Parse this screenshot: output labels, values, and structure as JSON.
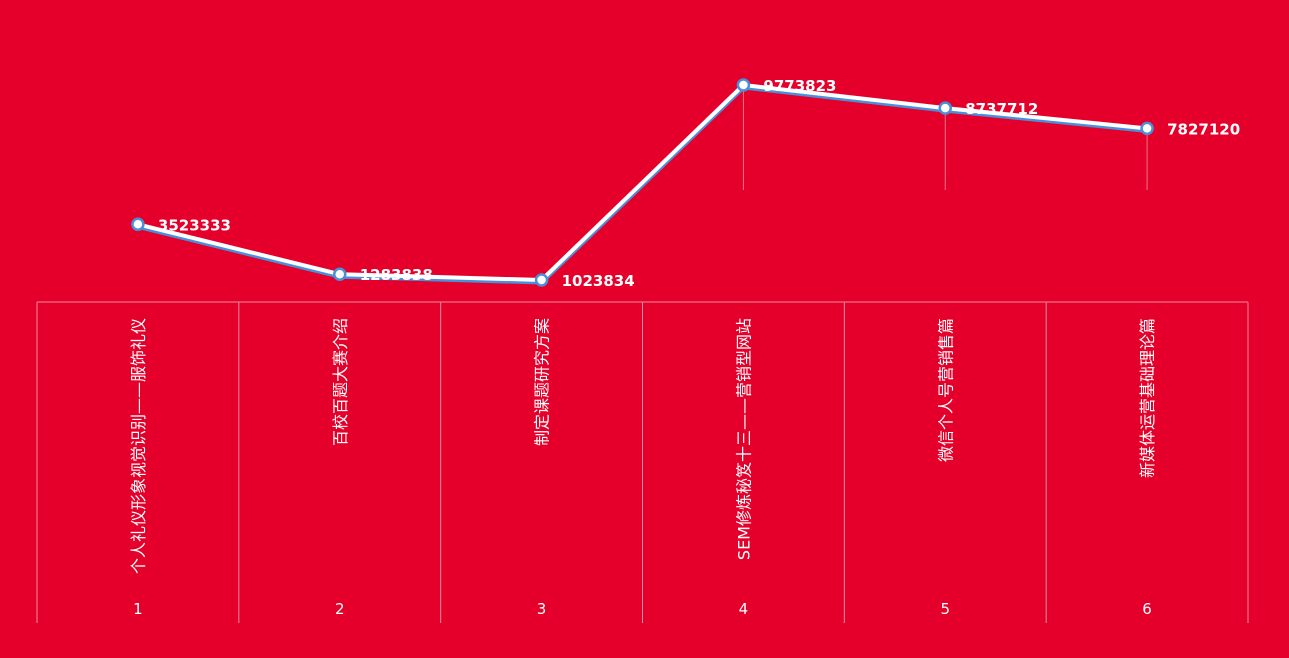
{
  "chart_data": {
    "type": "line",
    "categories": [
      "1",
      "2",
      "3",
      "4",
      "5",
      "6"
    ],
    "category_labels": [
      "个人礼仪形象视觉识别——服饰礼仪",
      "百校百题大赛介绍",
      "制定课题研究方案",
      "SEM修炼秘笈十三——营销型网站",
      "微信个人号营销售篇",
      "新媒体运营基础理论篇"
    ],
    "values": [
      3523333,
      1283838,
      1023834,
      9773823,
      8737712,
      7827120
    ],
    "value_labels": [
      "3523333",
      "1283838",
      "1023834",
      "9773823",
      "8737712",
      "7827120"
    ],
    "ylim": [
      1023834,
      9773823
    ],
    "grid": false,
    "legend": "none"
  },
  "colors": {
    "background": "#e4002b",
    "line_outer": "#ffffff",
    "line_inner": "#4a90d9",
    "marker_fill": "#ffffff",
    "marker_stroke": "#4a90d9",
    "grid": "#f28a9c"
  }
}
